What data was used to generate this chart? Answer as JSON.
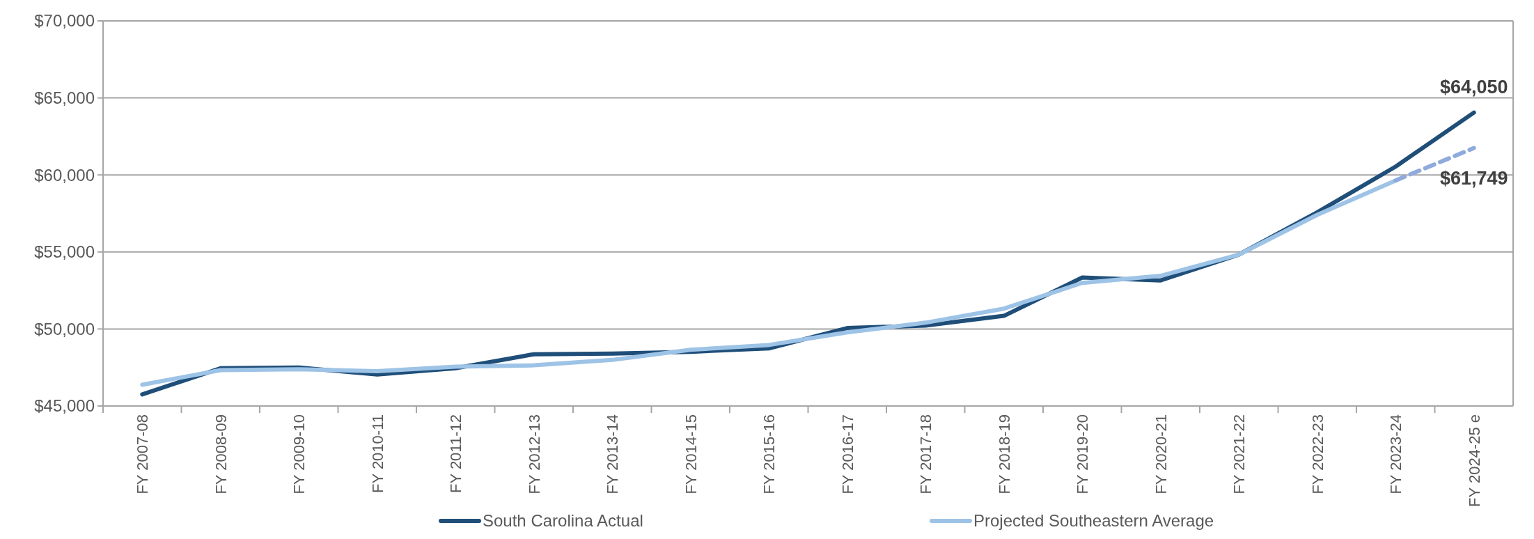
{
  "chart_data": {
    "type": "line",
    "categories": [
      "FY 2007-08",
      "FY 2008-09",
      "FY 2009-10",
      "FY 2010-11",
      "FY 2011-12",
      "FY 2012-13",
      "FY 2013-14",
      "FY 2014-15",
      "FY 2015-16",
      "FY 2016-17",
      "FY 2017-18",
      "FY 2018-19",
      "FY 2019-20",
      "FY 2020-21",
      "FY 2021-22",
      "FY 2022-23",
      "FY 2023-24",
      "FY 2024-25 e"
    ],
    "series": [
      {
        "name": "South Carolina Actual",
        "color": "#1f4e79",
        "values": [
          45750,
          47450,
          47500,
          47040,
          47450,
          48360,
          48400,
          48520,
          48740,
          50060,
          50220,
          50850,
          53340,
          53150,
          54830,
          57570,
          60540,
          64050
        ]
      },
      {
        "name": "Projected Southeastern Average",
        "color": "#9dc3e6",
        "values": [
          46380,
          47330,
          47390,
          47260,
          47550,
          47640,
          47990,
          48650,
          48960,
          49780,
          50410,
          51320,
          52990,
          53450,
          54830,
          57410,
          59640,
          null
        ]
      },
      {
        "color": "#8faadc",
        "line_style": "dashed",
        "values": [
          null,
          null,
          null,
          null,
          null,
          null,
          null,
          null,
          null,
          null,
          null,
          null,
          null,
          null,
          null,
          null,
          59640,
          61749
        ]
      }
    ],
    "ylim": [
      45000,
      70000
    ],
    "yticks": [
      {
        "value": 45000,
        "label": "$45,000"
      },
      {
        "value": 50000,
        "label": "$50,000"
      },
      {
        "value": 55000,
        "label": "$55,000"
      },
      {
        "value": 60000,
        "label": "$60,000"
      },
      {
        "value": 65000,
        "label": "$65,000"
      },
      {
        "value": 70000,
        "label": "$70,000"
      }
    ],
    "annotations": [
      {
        "text": "$64,050",
        "x": "FY 2024-25 e",
        "y": 64050
      },
      {
        "text": "$61,749",
        "x": "FY 2024-25 e",
        "y": 61749
      }
    ],
    "grid": "y",
    "legend": "bottom",
    "line_style": "solid"
  }
}
